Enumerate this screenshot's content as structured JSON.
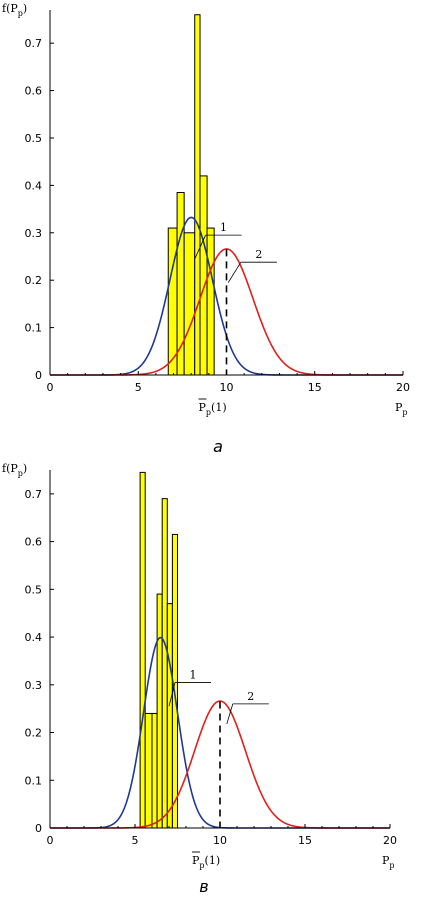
{
  "chart_data": [
    {
      "type": "bar+line",
      "caption": "a",
      "ylabel": "f(P",
      "ylabel_sub": "p",
      "ylabel_tail": ")",
      "xlabel": "P",
      "xlabel_sub": "p",
      "mean_label_main": "P",
      "mean_label_sub": "p",
      "mean_label_tail": "(1)",
      "xlim": [
        0,
        20
      ],
      "ylim": [
        0,
        0.77
      ],
      "x_ticks": [
        0,
        5,
        10,
        15,
        20
      ],
      "y_ticks": [
        0,
        0.1,
        0.2,
        0.3,
        0.4,
        0.5,
        0.6,
        0.7
      ],
      "y_tick_labels": [
        "0",
        "0.1",
        "0.2",
        "0.3",
        "0.4",
        "0.5",
        "0.6",
        "0.7"
      ],
      "bar_color": "#ffff00",
      "histogram": [
        {
          "x0": 6.7,
          "x1": 7.2,
          "h": 0.31
        },
        {
          "x0": 7.2,
          "x1": 7.6,
          "h": 0.385
        },
        {
          "x0": 7.6,
          "x1": 8.2,
          "h": 0.3
        },
        {
          "x0": 8.2,
          "x1": 8.5,
          "h": 0.76
        },
        {
          "x0": 8.5,
          "x1": 8.9,
          "h": 0.42
        },
        {
          "x0": 8.9,
          "x1": 9.3,
          "h": 0.31
        }
      ],
      "curves": [
        {
          "label": "1",
          "color": "#1f3a93",
          "mean": 8.0,
          "sd": 1.2,
          "label_x": 10.4,
          "label_y": 0.295,
          "label_ux": 8.2,
          "label_uy": 0.245
        },
        {
          "label": "2",
          "color": "#e0201c",
          "mean": 10.0,
          "sd": 1.5,
          "label_x": 12.4,
          "label_y": 0.238,
          "label_ux": 10.1,
          "label_uy": 0.195
        }
      ],
      "mean_line_x": 10.0,
      "mean_line_top": 0.265
    },
    {
      "type": "bar+line",
      "caption": "в",
      "ylabel": "f(P",
      "ylabel_sub": "p",
      "ylabel_tail": ")",
      "xlabel": "P",
      "xlabel_sub": "p",
      "mean_label_main": "P",
      "mean_label_sub": "p",
      "mean_label_tail": "(1)",
      "xlim": [
        0,
        20
      ],
      "ylim": [
        0,
        0.75
      ],
      "x_ticks": [
        0,
        5,
        10,
        15,
        20
      ],
      "y_ticks": [
        0,
        0.1,
        0.2,
        0.3,
        0.4,
        0.5,
        0.6,
        0.7
      ],
      "y_tick_labels": [
        "0",
        "0.1",
        "0.2",
        "0.3",
        "0.4",
        "0.5",
        "0.6",
        "0.7"
      ],
      "bar_color": "#ffff00",
      "histogram": [
        {
          "x0": 5.3,
          "x1": 5.6,
          "h": 0.745
        },
        {
          "x0": 5.6,
          "x1": 6.0,
          "h": 0.24
        },
        {
          "x0": 6.0,
          "x1": 6.3,
          "h": 0.24
        },
        {
          "x0": 6.3,
          "x1": 6.6,
          "h": 0.49
        },
        {
          "x0": 6.6,
          "x1": 6.9,
          "h": 0.69
        },
        {
          "x0": 6.9,
          "x1": 7.2,
          "h": 0.47
        },
        {
          "x0": 7.2,
          "x1": 7.5,
          "h": 0.615
        }
      ],
      "curves": [
        {
          "label": "1",
          "color": "#1f3a93",
          "mean": 6.5,
          "sd": 1.0,
          "label_x": 9.0,
          "label_y": 0.305,
          "label_ux": 7.0,
          "label_uy": 0.255
        },
        {
          "label": "2",
          "color": "#e0201c",
          "mean": 10.0,
          "sd": 1.5,
          "label_x": 12.4,
          "label_y": 0.26,
          "label_ux": 10.4,
          "label_uy": 0.218
        }
      ],
      "mean_line_x": 10.0,
      "mean_line_top": 0.265
    }
  ]
}
